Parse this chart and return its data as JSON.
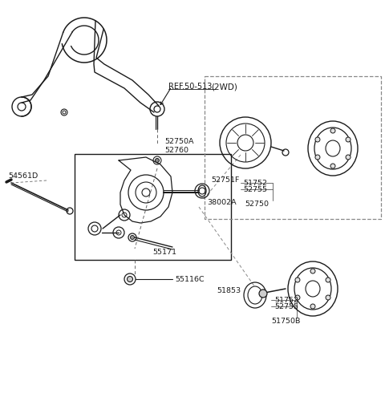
{
  "bg_color": "#ffffff",
  "line_color": "#1a1a1a",
  "label_color": "#1a1a1a",
  "parts": {
    "REF_50_513": "REF.50-513",
    "p54561D": "54561D",
    "p52750A": "52750A",
    "p52760": "52760",
    "p38002A": "38002A",
    "p55171": "55171",
    "p55116C": "55116C",
    "p52751F": "52751F",
    "p51752_1": "51752",
    "p52755_1": "52755",
    "p52750": "52750",
    "p2WD": "(2WD)",
    "p51853": "51853",
    "p51752_2": "51752",
    "p52755_2": "52755",
    "p51750B": "51750B"
  }
}
